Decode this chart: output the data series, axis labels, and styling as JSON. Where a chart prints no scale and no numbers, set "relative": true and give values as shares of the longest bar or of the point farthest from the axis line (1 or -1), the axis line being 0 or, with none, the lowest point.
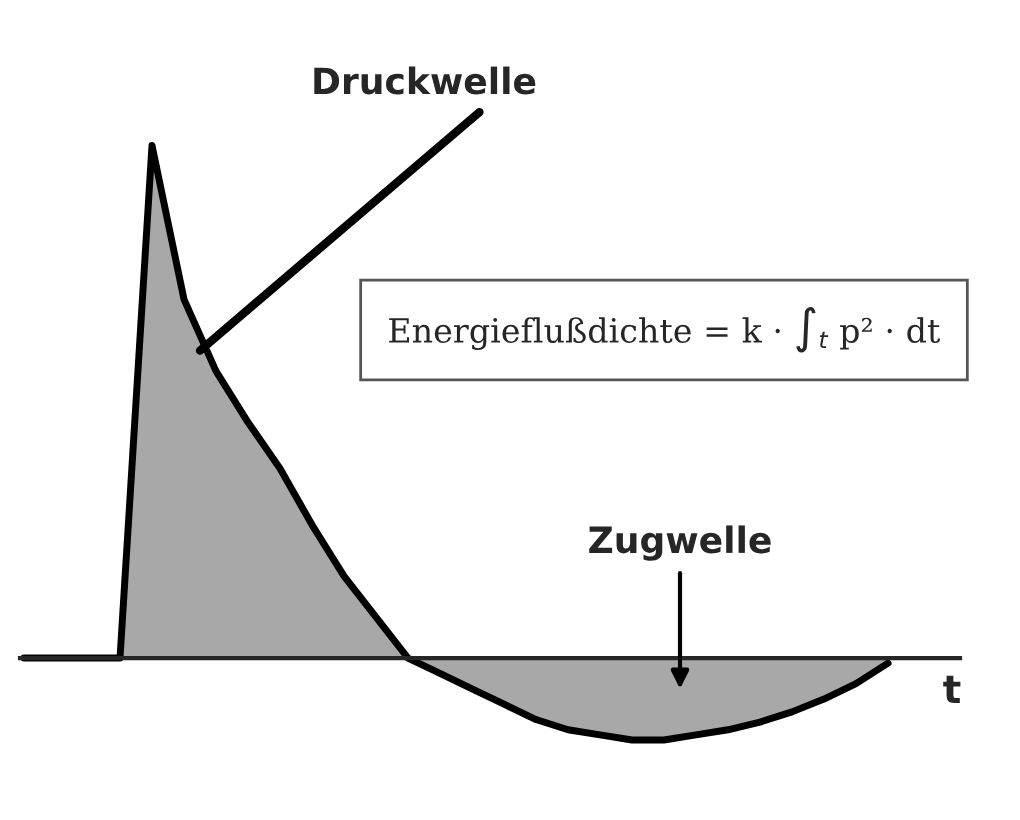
{
  "chart_data": {
    "type": "area",
    "relative": true,
    "xlabel": "t",
    "categories": [
      null,
      null,
      null,
      null,
      null,
      null,
      null,
      null,
      null,
      null,
      null,
      null,
      null,
      null,
      null,
      null,
      null,
      null,
      null,
      null,
      null,
      null,
      null,
      null,
      null,
      null,
      null,
      null
    ],
    "series": [
      {
        "color": "#a8a8a8",
        "values": [
          0,
          0,
          0,
          0,
          1.0,
          0.7,
          0.56,
          0.46,
          0.37,
          0.26,
          0.16,
          0.08,
          0.0,
          -0.03,
          -0.06,
          -0.09,
          -0.12,
          -0.14,
          -0.15,
          -0.16,
          -0.16,
          -0.15,
          -0.14,
          -0.125,
          -0.105,
          -0.08,
          -0.05,
          -0.01
        ]
      }
    ],
    "annotations": [
      "Druckwelle",
      "Zugwelle",
      "Energieflußdichte = k · ∫$_{t}$ p² · dt"
    ]
  }
}
